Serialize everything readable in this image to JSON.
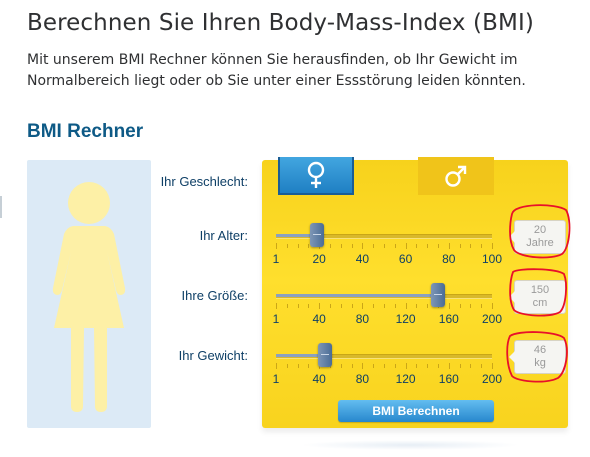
{
  "page": {
    "title": "Berechnen Sie Ihren Body-Mass-Index (BMI)",
    "intro": "Mit unserem BMI Rechner können Sie herausfinden, ob Ihr Gewicht im Normalbereich liegt oder ob Sie unter einer Essstörung leiden könnten."
  },
  "calculator": {
    "title": "BMI Rechner",
    "gender": {
      "label": "Ihr Geschlecht:",
      "selected": "female",
      "options": [
        {
          "key": "female",
          "icon": "female-symbol-icon"
        },
        {
          "key": "male",
          "icon": "male-symbol-icon"
        }
      ]
    },
    "age": {
      "label": "Ihr Alter:",
      "ticks": [
        "1",
        "20",
        "40",
        "60",
        "80",
        "100"
      ],
      "min": 1,
      "max": 100,
      "value": 20,
      "display_value": "20",
      "unit": "Jahre"
    },
    "height": {
      "label": "Ihre Größe:",
      "ticks": [
        "1",
        "40",
        "80",
        "120",
        "160",
        "200"
      ],
      "min": 1,
      "max": 200,
      "value": 150,
      "display_value": "150",
      "unit": "cm"
    },
    "weight": {
      "label": "Ihr Gewicht:",
      "ticks": [
        "1",
        "40",
        "80",
        "120",
        "160",
        "200"
      ],
      "min": 1,
      "max": 200,
      "value": 46,
      "display_value": "46",
      "unit": "kg"
    },
    "submit_label": "BMI Berechnen"
  },
  "colors": {
    "panel_yellow": "#ffdf2d",
    "figure_yellow": "#fdf0a6",
    "figure_panel_bg": "#dceaf6",
    "heading_blue": "#0e5a86",
    "button_blue": "#2787cd",
    "annotation_red": "#e8102a"
  }
}
